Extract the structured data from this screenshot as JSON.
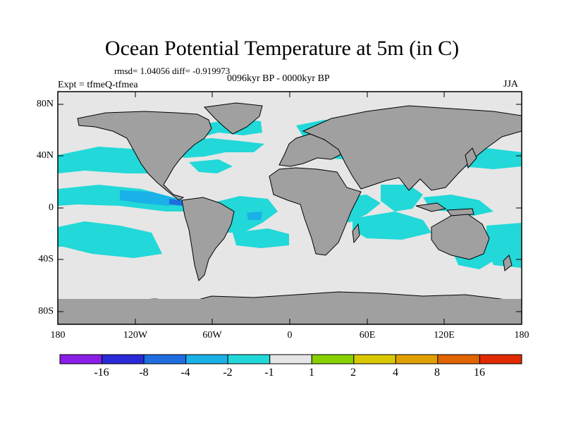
{
  "figure": {
    "title": "Ocean Potential Temperature at 5m (in C)",
    "stats": "rmsd= 1.04056 diff= -0.919973",
    "experiment": "Expt = tfmeQ-tfmea",
    "period": "0096kyr BP - 0000kyr BP",
    "season": "JJA"
  },
  "axes": {
    "lat_labels": [
      "80N",
      "40N",
      "0",
      "40S",
      "80S"
    ],
    "lon_labels": [
      "180",
      "120W",
      "60W",
      "0",
      "60E",
      "120E",
      "180"
    ]
  },
  "colors": {
    "land": "#a0a0a0",
    "neutral_ocean": "#e6e6e6",
    "cyan": "#22d8d8",
    "light_blue": "#1ab0e8",
    "blue": "#1e6ee0"
  },
  "colorbar": {
    "labels": [
      "-16",
      "-8",
      "-4",
      "-2",
      "-1",
      "1",
      "2",
      "4",
      "8",
      "16"
    ],
    "colors": [
      "#8a1ee6",
      "#2a2ad8",
      "#1e6ee0",
      "#1ab0e8",
      "#22d8d8",
      "#e6e6e6",
      "#88d000",
      "#d8c800",
      "#e0a000",
      "#e06400",
      "#e02a00"
    ]
  }
}
